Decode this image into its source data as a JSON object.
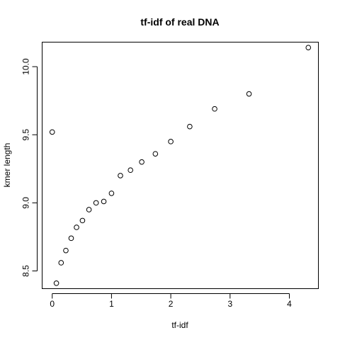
{
  "chart_data": {
    "type": "scatter",
    "title": "tf-idf of real DNA",
    "xlabel": "tf-idf",
    "ylabel": "kmer length",
    "xlim": [
      -0.17,
      4.49
    ],
    "ylim": [
      8.37,
      10.18
    ],
    "xticks": [
      0,
      1,
      2,
      3,
      4
    ],
    "xtick_labels": [
      "0",
      "1",
      "2",
      "3",
      "4"
    ],
    "yticks": [
      8.5,
      9.0,
      9.5,
      10.0
    ],
    "ytick_labels": [
      "8.5",
      "9.0",
      "9.5",
      "10.0"
    ],
    "grid": false,
    "marker": "open-circle",
    "point_color": "#000000",
    "points": [
      {
        "x": 0.0,
        "y": 9.52
      },
      {
        "x": 0.07,
        "y": 8.41
      },
      {
        "x": 0.15,
        "y": 8.56
      },
      {
        "x": 0.23,
        "y": 8.65
      },
      {
        "x": 0.32,
        "y": 8.74
      },
      {
        "x": 0.41,
        "y": 8.82
      },
      {
        "x": 0.51,
        "y": 8.87
      },
      {
        "x": 0.62,
        "y": 8.95
      },
      {
        "x": 0.74,
        "y": 9.0
      },
      {
        "x": 0.87,
        "y": 9.01
      },
      {
        "x": 1.0,
        "y": 9.07
      },
      {
        "x": 1.15,
        "y": 9.2
      },
      {
        "x": 1.32,
        "y": 9.24
      },
      {
        "x": 1.51,
        "y": 9.3
      },
      {
        "x": 1.74,
        "y": 9.36
      },
      {
        "x": 2.0,
        "y": 9.45
      },
      {
        "x": 2.32,
        "y": 9.56
      },
      {
        "x": 2.74,
        "y": 9.69
      },
      {
        "x": 3.32,
        "y": 9.8
      },
      {
        "x": 4.32,
        "y": 10.14
      }
    ]
  }
}
